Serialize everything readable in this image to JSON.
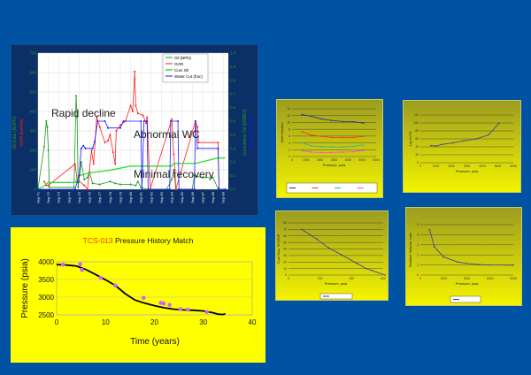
{
  "colors": {
    "background": "#0052a2",
    "oil": "#1a9a1a",
    "gor": "#ff2020",
    "cum_oil": "#33dd33",
    "water_cut": "#1a1aff",
    "panel_yellow": "#ffff00",
    "match_points": "#cc66ff"
  },
  "chart_data": [
    {
      "type": "line",
      "xlabel": "",
      "ylabel": "Oil Rate (BOPD)",
      "ylabel2": "GOR (scf/bbl)",
      "y2label": "Cumulative Oil (MMBO)",
      "y2label2": "Water Cut (frac)",
      "ylim": [
        0,
        700
      ],
      "y2lim": [
        0,
        1.0
      ],
      "yticks": [
        "0",
        "100",
        "200",
        "300",
        "400",
        "500",
        "600",
        "700"
      ],
      "y2ticks": [
        "0.0",
        "0.1",
        "0.2",
        "0.3",
        "0.4",
        "0.5",
        "0.6",
        "0.7",
        "0.8",
        "0.9",
        "1.0"
      ],
      "xticks": [
        "Sep-71",
        "Sep-72",
        "Sep-73",
        "Sep-74",
        "Sep-75",
        "Sep-76",
        "Sep-77",
        "Sep-78",
        "Sep-79",
        "Sep-80",
        "Sep-81",
        "Sep-82",
        "Sep-83",
        "Sep-84",
        "Sep-85",
        "Sep-86",
        "Sep-87",
        "Sep-88",
        "Sep-89"
      ],
      "legend_position": "top-right",
      "grid": true,
      "annotations": [
        "Rapid decline",
        "Abnormal WC",
        "Minimal recovery"
      ],
      "series": [
        {
          "name": "Oil (BPD)",
          "axis": "left",
          "points": [
            [
              71.0,
              5
            ],
            [
              71.6,
              220
            ],
            [
              71.8,
              350
            ],
            [
              71.9,
              320
            ],
            [
              72.0,
              200
            ],
            [
              72.1,
              10
            ],
            [
              74.5,
              10
            ],
            [
              74.7,
              480
            ],
            [
              74.8,
              370
            ],
            [
              74.9,
              10
            ],
            [
              75.2,
              140
            ],
            [
              75.5,
              50
            ],
            [
              75.8,
              60
            ],
            [
              76.0,
              90
            ],
            [
              76.3,
              30
            ],
            [
              77,
              25
            ],
            [
              78,
              40
            ],
            [
              78.5,
              30
            ],
            [
              79,
              25
            ],
            [
              80,
              25
            ],
            [
              80.5,
              20
            ],
            [
              80.7,
              40
            ],
            [
              81,
              10
            ],
            [
              81.5,
              0
            ],
            [
              83.5,
              0
            ],
            [
              84,
              50
            ],
            [
              84.2,
              100
            ],
            [
              84.4,
              0
            ],
            [
              86,
              0
            ],
            [
              86.2,
              70
            ],
            [
              87,
              60
            ],
            [
              88,
              60
            ],
            [
              88.5,
              5
            ]
          ]
        },
        {
          "name": "GOR",
          "axis": "left",
          "points": [
            [
              71.6,
              40
            ],
            [
              71.8,
              20
            ],
            [
              72.0,
              20
            ],
            [
              74.6,
              130
            ],
            [
              74.8,
              50
            ],
            [
              75.0,
              40
            ],
            [
              75.5,
              20
            ],
            [
              75.8,
              0
            ],
            [
              76.2,
              200
            ],
            [
              76.4,
              130
            ],
            [
              76.7,
              370
            ],
            [
              77,
              320
            ],
            [
              77.5,
              240
            ],
            [
              77.8,
              250
            ],
            [
              78,
              280
            ],
            [
              78.3,
              190
            ],
            [
              78.5,
              130
            ],
            [
              78.6,
              300
            ],
            [
              79,
              330
            ],
            [
              79.5,
              350
            ],
            [
              80,
              430
            ],
            [
              80.2,
              400
            ],
            [
              80.4,
              605
            ],
            [
              80.5,
              430
            ],
            [
              80.7,
              390
            ],
            [
              81.2,
              380
            ],
            [
              81.5,
              340
            ],
            [
              81.6,
              370
            ],
            [
              81.9,
              0
            ],
            [
              84,
              360
            ],
            [
              84.2,
              180
            ],
            [
              84.3,
              100
            ],
            [
              84.4,
              0
            ],
            [
              86.3,
              350
            ],
            [
              86.5,
              320
            ],
            [
              86.6,
              240
            ],
            [
              88.5,
              240
            ],
            [
              88.6,
              0
            ]
          ]
        },
        {
          "name": "Cum Oil",
          "axis": "right",
          "points": [
            [
              71,
              0
            ],
            [
              71.5,
              0.02
            ],
            [
              72,
              0.05
            ],
            [
              74.6,
              0.05
            ],
            [
              75,
              0.1
            ],
            [
              76,
              0.12
            ],
            [
              78,
              0.14
            ],
            [
              80,
              0.17
            ],
            [
              81.5,
              0.17
            ],
            [
              84,
              0.17
            ],
            [
              84.2,
              0.19
            ],
            [
              86.3,
              0.19
            ],
            [
              88.5,
              0.23
            ],
            [
              89.2,
              0.23
            ]
          ]
        },
        {
          "name": "Water Cut (frac)",
          "axis": "right",
          "points": [
            [
              71,
              0
            ],
            [
              74.6,
              0
            ],
            [
              74.8,
              0.05
            ],
            [
              75,
              0.1
            ],
            [
              75.2,
              0.3
            ],
            [
              75.4,
              0.32
            ],
            [
              75.6,
              0.3
            ],
            [
              76.3,
              0.3
            ],
            [
              76.5,
              0.35
            ],
            [
              76.8,
              0.5
            ],
            [
              77.5,
              0.5
            ],
            [
              77.8,
              0.45
            ],
            [
              79,
              0.45
            ],
            [
              79.3,
              0.5
            ],
            [
              81,
              0.5
            ],
            [
              81.1,
              0
            ],
            [
              81.3,
              0.5
            ],
            [
              81.6,
              0.5
            ],
            [
              81.7,
              0
            ],
            [
              83.8,
              0
            ],
            [
              83.9,
              0.5
            ],
            [
              84.6,
              0.5
            ],
            [
              84.7,
              0
            ],
            [
              86.2,
              0
            ],
            [
              86.3,
              0.5
            ],
            [
              86.5,
              0.3
            ],
            [
              88.5,
              0.3
            ],
            [
              88.6,
              0
            ],
            [
              89.2,
              0
            ]
          ]
        }
      ]
    },
    {
      "type": "scatter",
      "title_highlight": "TCS-013",
      "title": "Pressure History Match",
      "xlabel": "Time (years)",
      "ylabel": "Pressure (psia)",
      "xlim": [
        0,
        40
      ],
      "ylim": [
        2500,
        4000
      ],
      "xticks": [
        "0",
        "10",
        "20",
        "30",
        "40"
      ],
      "yticks": [
        "2500",
        "3000",
        "3500",
        "4000"
      ],
      "grid": true,
      "measured": [
        [
          1.3,
          3920
        ],
        [
          4.8,
          3930
        ],
        [
          5.2,
          3770
        ],
        [
          9,
          3550
        ],
        [
          12,
          3330
        ],
        [
          17.8,
          2980
        ],
        [
          21.3,
          2840
        ],
        [
          21.9,
          2820
        ],
        [
          23.1,
          2780
        ],
        [
          25.3,
          2660
        ],
        [
          26.8,
          2650
        ],
        [
          30.7,
          2580
        ]
      ],
      "simulated": [
        [
          0,
          3920
        ],
        [
          2,
          3910
        ],
        [
          4,
          3880
        ],
        [
          6,
          3780
        ],
        [
          8,
          3640
        ],
        [
          10,
          3490
        ],
        [
          12,
          3330
        ],
        [
          14,
          3100
        ],
        [
          16,
          2920
        ],
        [
          18,
          2830
        ],
        [
          20,
          2760
        ],
        [
          22,
          2700
        ],
        [
          24,
          2660
        ],
        [
          26,
          2640
        ],
        [
          28,
          2630
        ],
        [
          30,
          2610
        ],
        [
          32,
          2560
        ],
        [
          33,
          2520
        ],
        [
          34,
          2510
        ],
        [
          34.5,
          2530
        ]
      ]
    },
    {
      "type": "line",
      "xlabel": "Pressure, psia",
      "ylabel": "Mole fraction",
      "xlim": [
        0,
        6000
      ],
      "ylim": [
        0,
        14
      ],
      "xticks": [
        "0",
        "1000",
        "2000",
        "3000",
        "4000",
        "5000",
        "6000"
      ],
      "yticks": [
        "0",
        "2",
        "4",
        "6",
        "8",
        "10",
        "12",
        "14"
      ],
      "x": [
        700,
        1400,
        2100,
        2800,
        3600,
        4400,
        5100
      ],
      "series": [
        {
          "color": "#2a2a9a",
          "values": [
            12.3,
            11.8,
            11,
            10.6,
            10.3,
            10.2,
            9.8
          ]
        },
        {
          "color": "#ff3010",
          "values": [
            7.3,
            6.3,
            5.9,
            5.6,
            5.6,
            5.6,
            5.9
          ]
        },
        {
          "color": "#30b0a0",
          "values": [
            4.0,
            3.1,
            2.9,
            2.8,
            2.8,
            3.0,
            3.4
          ]
        },
        {
          "color": "#ff40ff",
          "values": [
            1.7,
            1.3,
            1.2,
            1.2,
            1.3,
            1.4,
            1.8
          ]
        }
      ]
    },
    {
      "type": "line",
      "xlabel": "Pressure, psia",
      "ylabel": "Liq Vol %",
      "xlim": [
        0,
        6000
      ],
      "ylim": [
        0,
        120
      ],
      "xticks": [
        "0",
        "1000",
        "2000",
        "3000",
        "4000",
        "5000",
        "6000"
      ],
      "yticks": [
        "0",
        "20",
        "40",
        "60",
        "80",
        "100",
        "120"
      ],
      "points": [
        [
          700,
          43
        ],
        [
          1000,
          42
        ],
        [
          1400,
          46
        ],
        [
          2100,
          50
        ],
        [
          2800,
          55
        ],
        [
          3600,
          60
        ],
        [
          4400,
          70
        ],
        [
          5100,
          100
        ]
      ]
    },
    {
      "type": "line",
      "xlabel": "Pressure, psia",
      "ylabel": "Cum Gas, % OGIP",
      "xlim": [
        0,
        500
      ],
      "ylim": [
        0,
        80
      ],
      "xticks": [
        "0",
        "200",
        "400",
        "600"
      ],
      "yticks": [
        "0",
        "10",
        "20",
        "30",
        "40",
        "50",
        "60",
        "70",
        "80"
      ],
      "points": [
        [
          70,
          70
        ],
        [
          150,
          55
        ],
        [
          210,
          42
        ],
        [
          280,
          31
        ],
        [
          360,
          18
        ],
        [
          410,
          10
        ],
        [
          440,
          7
        ],
        [
          510,
          0
        ]
      ]
    },
    {
      "type": "line",
      "xlabel": "Pressure, psia",
      "ylabel": "Relative Volume, ratio",
      "xlim": [
        0,
        8000
      ],
      "ylim": [
        0,
        5
      ],
      "xticks": [
        "0",
        "2000",
        "4000",
        "6000",
        "8000"
      ],
      "yticks": [
        "0",
        "1",
        "2",
        "3",
        "4",
        "5"
      ],
      "points": [
        [
          800,
          4.5
        ],
        [
          1200,
          2.8
        ],
        [
          2000,
          1.8
        ],
        [
          3200,
          1.3
        ],
        [
          4000,
          1.15
        ],
        [
          5000,
          1.05
        ],
        [
          6000,
          1.0
        ],
        [
          8000,
          0.98
        ]
      ]
    }
  ]
}
